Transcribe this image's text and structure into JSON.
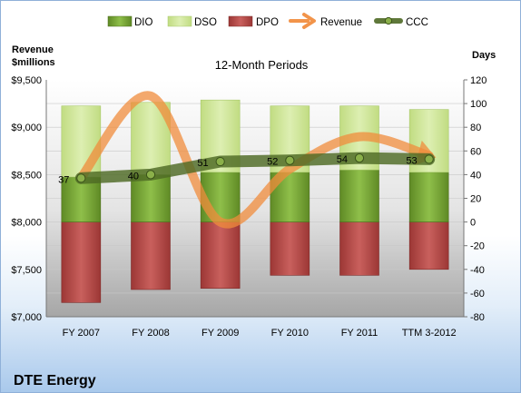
{
  "chart_data": {
    "type": "bar",
    "title": "12-Month Periods",
    "company": "DTE Energy",
    "left_axis_label_line1": "Revenue",
    "left_axis_label_line2": "$millions",
    "right_axis_label": "Days",
    "left_ylim": [
      7000,
      9500
    ],
    "right_ylim": [
      -80,
      120
    ],
    "left_ticks": [
      "$7,000",
      "$7,500",
      "$8,000",
      "$8,500",
      "$9,000",
      "$9,500"
    ],
    "right_ticks": [
      "-80",
      "-60",
      "-40",
      "-20",
      "0",
      "20",
      "40",
      "60",
      "80",
      "100",
      "120"
    ],
    "categories": [
      "FY 2007",
      "FY 2008",
      "FY 2009",
      "FY 2010",
      "FY 2011",
      "TTM 3-2012"
    ],
    "legend": [
      {
        "name": "DIO",
        "color": "#76a034",
        "kind": "bar"
      },
      {
        "name": "DSO",
        "color": "#cfe59a",
        "kind": "bar"
      },
      {
        "name": "DPO",
        "color": "#b24846",
        "kind": "bar"
      },
      {
        "name": "Revenue",
        "color": "#f2944a",
        "kind": "arrow"
      },
      {
        "name": "CCC",
        "color": "#4e6a25",
        "kind": "line"
      }
    ],
    "series": [
      {
        "name": "DIO",
        "axis": "right",
        "values": [
          38,
          40,
          42,
          42,
          44,
          42
        ]
      },
      {
        "name": "DSO",
        "axis": "right",
        "values": [
          60,
          61,
          61,
          56,
          54,
          53
        ]
      },
      {
        "name": "DPO",
        "axis": "right",
        "values": [
          -68,
          -57,
          -56,
          -45,
          -45,
          -40
        ]
      },
      {
        "name": "Revenue",
        "axis": "left",
        "values": [
          8470,
          9330,
          8000,
          8560,
          8900,
          8700
        ]
      },
      {
        "name": "CCC",
        "axis": "right",
        "values": [
          37,
          40,
          51,
          52,
          54,
          53
        ]
      }
    ],
    "ccc_labels": [
      "37",
      "40",
      "51",
      "52",
      "54",
      "53"
    ],
    "grid": true
  }
}
